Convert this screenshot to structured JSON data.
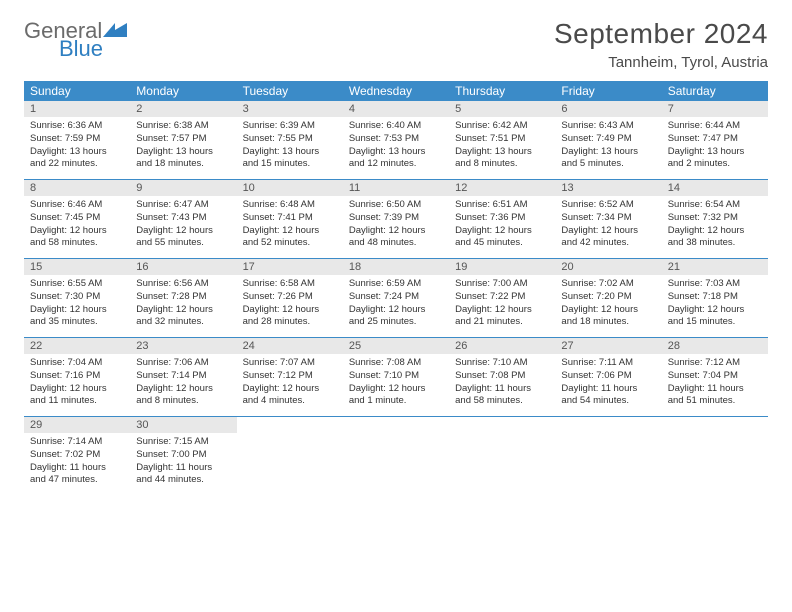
{
  "brand": {
    "text1": "General",
    "text2": "Blue"
  },
  "title": "September 2024",
  "location": "Tannheim, Tyrol, Austria",
  "colors": {
    "header_blue": "#3b8bc8",
    "day_header_gray": "#e8e8e8",
    "border_blue": "#3b8bc8",
    "logo_gray": "#6b6b6b",
    "logo_blue": "#2f7fc1"
  },
  "weekdays": [
    "Sunday",
    "Monday",
    "Tuesday",
    "Wednesday",
    "Thursday",
    "Friday",
    "Saturday"
  ],
  "weeks": [
    [
      {
        "n": "1",
        "sr": "6:36 AM",
        "ss": "7:59 PM",
        "dl": "13 hours and 22 minutes."
      },
      {
        "n": "2",
        "sr": "6:38 AM",
        "ss": "7:57 PM",
        "dl": "13 hours and 18 minutes."
      },
      {
        "n": "3",
        "sr": "6:39 AM",
        "ss": "7:55 PM",
        "dl": "13 hours and 15 minutes."
      },
      {
        "n": "4",
        "sr": "6:40 AM",
        "ss": "7:53 PM",
        "dl": "13 hours and 12 minutes."
      },
      {
        "n": "5",
        "sr": "6:42 AM",
        "ss": "7:51 PM",
        "dl": "13 hours and 8 minutes."
      },
      {
        "n": "6",
        "sr": "6:43 AM",
        "ss": "7:49 PM",
        "dl": "13 hours and 5 minutes."
      },
      {
        "n": "7",
        "sr": "6:44 AM",
        "ss": "7:47 PM",
        "dl": "13 hours and 2 minutes."
      }
    ],
    [
      {
        "n": "8",
        "sr": "6:46 AM",
        "ss": "7:45 PM",
        "dl": "12 hours and 58 minutes."
      },
      {
        "n": "9",
        "sr": "6:47 AM",
        "ss": "7:43 PM",
        "dl": "12 hours and 55 minutes."
      },
      {
        "n": "10",
        "sr": "6:48 AM",
        "ss": "7:41 PM",
        "dl": "12 hours and 52 minutes."
      },
      {
        "n": "11",
        "sr": "6:50 AM",
        "ss": "7:39 PM",
        "dl": "12 hours and 48 minutes."
      },
      {
        "n": "12",
        "sr": "6:51 AM",
        "ss": "7:36 PM",
        "dl": "12 hours and 45 minutes."
      },
      {
        "n": "13",
        "sr": "6:52 AM",
        "ss": "7:34 PM",
        "dl": "12 hours and 42 minutes."
      },
      {
        "n": "14",
        "sr": "6:54 AM",
        "ss": "7:32 PM",
        "dl": "12 hours and 38 minutes."
      }
    ],
    [
      {
        "n": "15",
        "sr": "6:55 AM",
        "ss": "7:30 PM",
        "dl": "12 hours and 35 minutes."
      },
      {
        "n": "16",
        "sr": "6:56 AM",
        "ss": "7:28 PM",
        "dl": "12 hours and 32 minutes."
      },
      {
        "n": "17",
        "sr": "6:58 AM",
        "ss": "7:26 PM",
        "dl": "12 hours and 28 minutes."
      },
      {
        "n": "18",
        "sr": "6:59 AM",
        "ss": "7:24 PM",
        "dl": "12 hours and 25 minutes."
      },
      {
        "n": "19",
        "sr": "7:00 AM",
        "ss": "7:22 PM",
        "dl": "12 hours and 21 minutes."
      },
      {
        "n": "20",
        "sr": "7:02 AM",
        "ss": "7:20 PM",
        "dl": "12 hours and 18 minutes."
      },
      {
        "n": "21",
        "sr": "7:03 AM",
        "ss": "7:18 PM",
        "dl": "12 hours and 15 minutes."
      }
    ],
    [
      {
        "n": "22",
        "sr": "7:04 AM",
        "ss": "7:16 PM",
        "dl": "12 hours and 11 minutes."
      },
      {
        "n": "23",
        "sr": "7:06 AM",
        "ss": "7:14 PM",
        "dl": "12 hours and 8 minutes."
      },
      {
        "n": "24",
        "sr": "7:07 AM",
        "ss": "7:12 PM",
        "dl": "12 hours and 4 minutes."
      },
      {
        "n": "25",
        "sr": "7:08 AM",
        "ss": "7:10 PM",
        "dl": "12 hours and 1 minute."
      },
      {
        "n": "26",
        "sr": "7:10 AM",
        "ss": "7:08 PM",
        "dl": "11 hours and 58 minutes."
      },
      {
        "n": "27",
        "sr": "7:11 AM",
        "ss": "7:06 PM",
        "dl": "11 hours and 54 minutes."
      },
      {
        "n": "28",
        "sr": "7:12 AM",
        "ss": "7:04 PM",
        "dl": "11 hours and 51 minutes."
      }
    ],
    [
      {
        "n": "29",
        "sr": "7:14 AM",
        "ss": "7:02 PM",
        "dl": "11 hours and 47 minutes."
      },
      {
        "n": "30",
        "sr": "7:15 AM",
        "ss": "7:00 PM",
        "dl": "11 hours and 44 minutes."
      },
      null,
      null,
      null,
      null,
      null
    ]
  ],
  "labels": {
    "sunrise": "Sunrise:",
    "sunset": "Sunset:",
    "daylight": "Daylight:"
  }
}
